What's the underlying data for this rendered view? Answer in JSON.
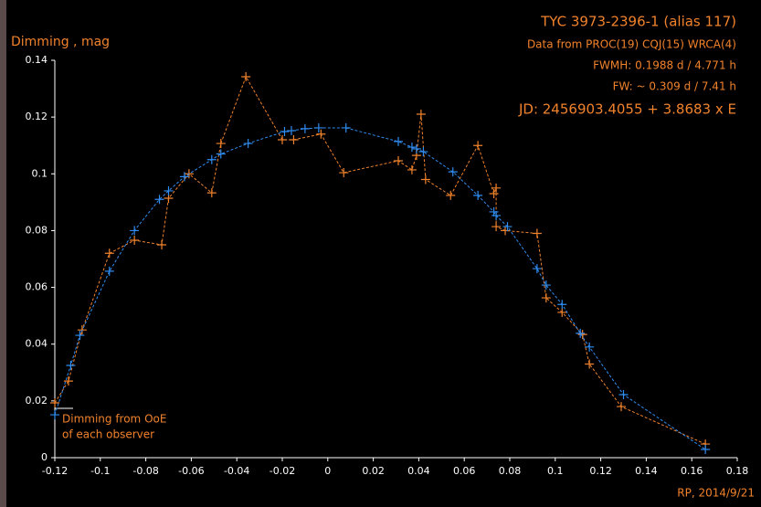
{
  "chart_data": {
    "type": "line",
    "title": "TYC 3973-2396-1 (alias 117)",
    "notes": [
      "Data from PROC(19)  CQJ(15) WRCA(4)",
      "FWMH:  0.1988 d / 4.771 h",
      "FW: ~ 0.309 d / 7.41 h",
      "JD:  2456903.4055 + 3.8683 x E"
    ],
    "y_label": "Dimming , mag",
    "annotation": [
      "Dimming from OoE",
      "of each observer"
    ],
    "footer": "RP, 2014/9/21",
    "xlim": [
      -0.12,
      0.18
    ],
    "ylim": [
      0,
      0.14
    ],
    "xticks": [
      -0.12,
      -0.1,
      -0.08,
      -0.06,
      -0.04,
      -0.02,
      0,
      0.02,
      0.04,
      0.06,
      0.08,
      0.1,
      0.12,
      0.14,
      0.16,
      0.18
    ],
    "yticks": [
      0,
      0.02,
      0.04,
      0.06,
      0.08,
      0.1,
      0.12,
      0.14
    ],
    "marker": "+",
    "dashed": true,
    "series": [
      {
        "color": "#f0822c",
        "x": [
          -0.12,
          -0.114,
          -0.108,
          -0.096,
          -0.085,
          -0.073,
          -0.07,
          -0.061,
          -0.051,
          -0.047,
          -0.036,
          -0.02,
          -0.015,
          -0.003,
          0.007,
          0.031,
          0.037,
          0.039,
          0.041,
          0.043,
          0.054,
          0.066,
          0.073,
          0.074,
          0.074,
          0.078,
          0.092,
          0.096,
          0.103,
          0.112,
          0.115,
          0.129,
          0.166
        ],
        "values": [
          0.0193,
          0.027,
          0.045,
          0.072,
          0.0766,
          0.075,
          0.0914,
          0.1,
          0.0933,
          0.1107,
          0.1342,
          0.112,
          0.112,
          0.114,
          0.1004,
          0.1046,
          0.1014,
          0.1065,
          0.121,
          0.098,
          0.0924,
          0.11,
          0.093,
          0.095,
          0.0814,
          0.08,
          0.079,
          0.0563,
          0.0512,
          0.0434,
          0.033,
          0.018,
          0.0048
        ]
      },
      {
        "color": "#2f8cf0",
        "x": [
          -0.12,
          -0.113,
          -0.109,
          -0.096,
          -0.085,
          -0.074,
          -0.07,
          -0.063,
          -0.051,
          -0.047,
          -0.035,
          -0.019,
          -0.016,
          -0.01,
          -0.004,
          0.008,
          0.031,
          0.037,
          0.039,
          0.042,
          0.055,
          0.066,
          0.073,
          0.074,
          0.079,
          0.092,
          0.096,
          0.103,
          0.111,
          0.115,
          0.13,
          0.166
        ],
        "values": [
          0.0151,
          0.0325,
          0.0431,
          0.0657,
          0.08,
          0.091,
          0.094,
          0.099,
          0.105,
          0.107,
          0.1107,
          0.1149,
          0.1152,
          0.1159,
          0.1162,
          0.1162,
          0.1114,
          0.1094,
          0.1088,
          0.1078,
          0.1007,
          0.0924,
          0.0866,
          0.0853,
          0.0814,
          0.0666,
          0.0608,
          0.054,
          0.0438,
          0.039,
          0.0222,
          0.0029
        ]
      }
    ]
  }
}
